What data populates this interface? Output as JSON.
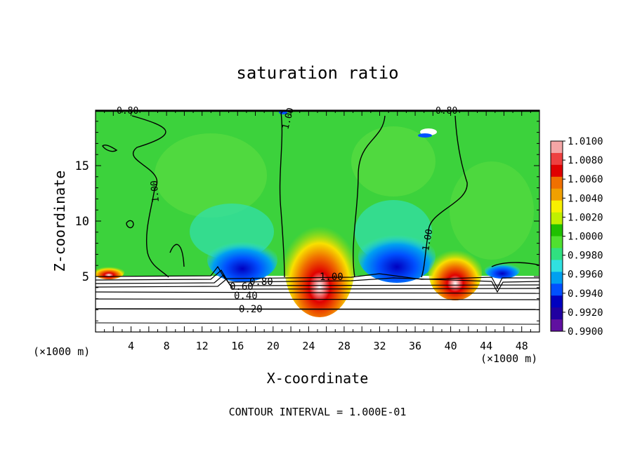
{
  "chart_data": {
    "type": "heatmap",
    "title": "saturation ratio",
    "xlabel": "X-coordinate",
    "ylabel": "Z-coordinate",
    "x_unit": "(×1000 m)",
    "x_unit_right": "(×1000 m)",
    "xlim": [
      0,
      50
    ],
    "ylim": [
      0,
      20
    ],
    "x_ticks": [
      "4",
      "8",
      "12",
      "16",
      "20",
      "24",
      "28",
      "32",
      "36",
      "40",
      "44",
      "48"
    ],
    "y_ticks": [
      "5",
      "10",
      "15"
    ],
    "footer": "CONTOUR INTERVAL = 1.000E-01",
    "colorbar": {
      "labels": [
        "1.0100",
        "1.0080",
        "1.0060",
        "1.0040",
        "1.0020",
        "1.0000",
        "0.9980",
        "0.9960",
        "0.9940",
        "0.9920",
        "0.9900"
      ],
      "colors": [
        "#f4a6a6",
        "#ee4040",
        "#e00000",
        "#f07000",
        "#f0a000",
        "#f8f000",
        "#c0f000",
        "#20c000",
        "#50e030",
        "#30e080",
        "#30e0e0",
        "#00a0f0",
        "#0050ff",
        "#0000c0",
        "#2000a0",
        "#6010a0"
      ]
    },
    "contour_labels": [
      "0.80",
      "0.80",
      "1.00",
      "1.00",
      "1.00",
      "1.00",
      "0.80",
      "0.60",
      "0.40",
      "0.20"
    ]
  }
}
